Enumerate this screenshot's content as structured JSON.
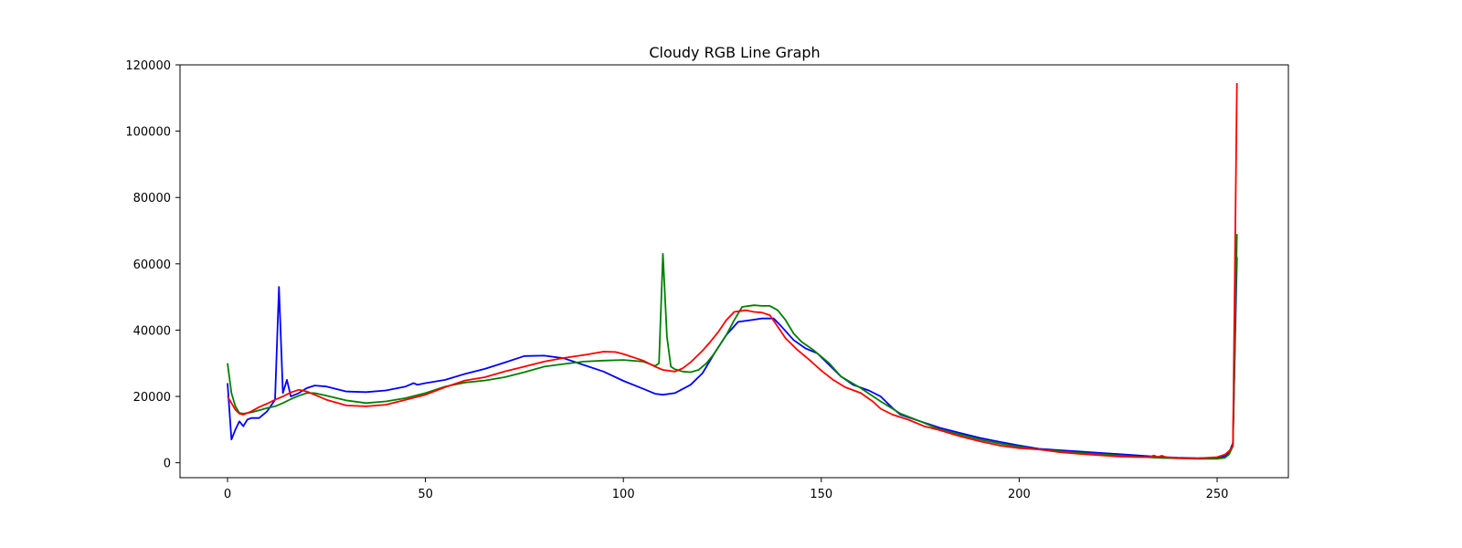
{
  "chart_data": {
    "type": "line",
    "title": "Cloudy RGB Line Graph",
    "xlabel": "",
    "ylabel": "",
    "xlim": [
      -12,
      268
    ],
    "ylim": [
      -4500,
      120000
    ],
    "xticks": [
      0,
      50,
      100,
      150,
      200,
      250
    ],
    "yticks": [
      0,
      20000,
      40000,
      60000,
      80000,
      100000,
      120000
    ],
    "grid": false,
    "legend": "none",
    "series": [
      {
        "color": "#0000ff",
        "points": [
          [
            0,
            24000
          ],
          [
            1,
            7000
          ],
          [
            2,
            10000
          ],
          [
            3,
            12500
          ],
          [
            4,
            11000
          ],
          [
            5,
            13000
          ],
          [
            6,
            13500
          ],
          [
            8,
            13500
          ],
          [
            10,
            15500
          ],
          [
            12,
            19000
          ],
          [
            13,
            53000
          ],
          [
            14,
            21000
          ],
          [
            15,
            25000
          ],
          [
            16,
            20000
          ],
          [
            18,
            21000
          ],
          [
            20,
            22500
          ],
          [
            22,
            23300
          ],
          [
            25,
            23000
          ],
          [
            30,
            21500
          ],
          [
            35,
            21300
          ],
          [
            40,
            21800
          ],
          [
            45,
            23000
          ],
          [
            47,
            24000
          ],
          [
            48,
            23500
          ],
          [
            50,
            24000
          ],
          [
            55,
            25000
          ],
          [
            60,
            26800
          ],
          [
            65,
            28300
          ],
          [
            70,
            30200
          ],
          [
            75,
            32200
          ],
          [
            80,
            32300
          ],
          [
            85,
            31500
          ],
          [
            90,
            29500
          ],
          [
            95,
            27500
          ],
          [
            100,
            24700
          ],
          [
            105,
            22300
          ],
          [
            108,
            20800
          ],
          [
            110,
            20500
          ],
          [
            113,
            21000
          ],
          [
            117,
            23500
          ],
          [
            120,
            27000
          ],
          [
            123,
            33000
          ],
          [
            126,
            38500
          ],
          [
            129,
            42500
          ],
          [
            132,
            43000
          ],
          [
            135,
            43500
          ],
          [
            138,
            43500
          ],
          [
            140,
            41000
          ],
          [
            143,
            37000
          ],
          [
            146,
            34500
          ],
          [
            149,
            33000
          ],
          [
            152,
            29500
          ],
          [
            155,
            26000
          ],
          [
            158,
            23500
          ],
          [
            162,
            21800
          ],
          [
            165,
            20000
          ],
          [
            168,
            16500
          ],
          [
            170,
            14500
          ],
          [
            175,
            12500
          ],
          [
            180,
            10500
          ],
          [
            185,
            9000
          ],
          [
            190,
            7500
          ],
          [
            195,
            6300
          ],
          [
            200,
            5200
          ],
          [
            205,
            4200
          ],
          [
            210,
            3800
          ],
          [
            215,
            3400
          ],
          [
            220,
            3000
          ],
          [
            225,
            2600
          ],
          [
            230,
            2200
          ],
          [
            235,
            1800
          ],
          [
            240,
            1500
          ],
          [
            245,
            1400
          ],
          [
            250,
            1500
          ],
          [
            252,
            2000
          ],
          [
            253,
            3000
          ],
          [
            254,
            6000
          ],
          [
            255,
            62000
          ]
        ]
      },
      {
        "color": "#008000",
        "points": [
          [
            0,
            30000
          ],
          [
            1,
            21000
          ],
          [
            2,
            17000
          ],
          [
            3,
            15000
          ],
          [
            4,
            14800
          ],
          [
            6,
            15200
          ],
          [
            8,
            15800
          ],
          [
            10,
            16500
          ],
          [
            12,
            17000
          ],
          [
            14,
            18000
          ],
          [
            16,
            19200
          ],
          [
            18,
            20200
          ],
          [
            20,
            21000
          ],
          [
            22,
            21000
          ],
          [
            25,
            20200
          ],
          [
            30,
            18800
          ],
          [
            35,
            18000
          ],
          [
            40,
            18500
          ],
          [
            45,
            19500
          ],
          [
            50,
            21000
          ],
          [
            55,
            23000
          ],
          [
            60,
            24200
          ],
          [
            65,
            24800
          ],
          [
            70,
            25800
          ],
          [
            75,
            27300
          ],
          [
            80,
            29000
          ],
          [
            85,
            29800
          ],
          [
            90,
            30500
          ],
          [
            95,
            30800
          ],
          [
            100,
            31000
          ],
          [
            105,
            30500
          ],
          [
            108,
            29200
          ],
          [
            109,
            30000
          ],
          [
            110,
            63000
          ],
          [
            111,
            38000
          ],
          [
            112,
            29000
          ],
          [
            113,
            28200
          ],
          [
            115,
            27500
          ],
          [
            117,
            27300
          ],
          [
            119,
            28000
          ],
          [
            121,
            30000
          ],
          [
            123,
            33000
          ],
          [
            126,
            38500
          ],
          [
            128,
            43000
          ],
          [
            130,
            47000
          ],
          [
            133,
            47500
          ],
          [
            135,
            47300
          ],
          [
            137,
            47300
          ],
          [
            139,
            46000
          ],
          [
            141,
            43000
          ],
          [
            143,
            39000
          ],
          [
            145,
            36500
          ],
          [
            148,
            34000
          ],
          [
            152,
            30000
          ],
          [
            155,
            26000
          ],
          [
            160,
            22500
          ],
          [
            165,
            18500
          ],
          [
            170,
            14800
          ],
          [
            175,
            12500
          ],
          [
            180,
            10000
          ],
          [
            185,
            8500
          ],
          [
            190,
            7000
          ],
          [
            195,
            5800
          ],
          [
            200,
            4800
          ],
          [
            205,
            4000
          ],
          [
            210,
            3500
          ],
          [
            215,
            3000
          ],
          [
            220,
            2600
          ],
          [
            225,
            2200
          ],
          [
            230,
            1800
          ],
          [
            235,
            1500
          ],
          [
            240,
            1300
          ],
          [
            245,
            1200
          ],
          [
            250,
            1200
          ],
          [
            252,
            1500
          ],
          [
            253,
            2500
          ],
          [
            254,
            5000
          ],
          [
            255,
            69000
          ]
        ]
      },
      {
        "color": "#ff0000",
        "points": [
          [
            0,
            20000
          ],
          [
            1,
            18000
          ],
          [
            2,
            16000
          ],
          [
            3,
            14800
          ],
          [
            4,
            14500
          ],
          [
            6,
            15500
          ],
          [
            8,
            16800
          ],
          [
            10,
            17800
          ],
          [
            12,
            19000
          ],
          [
            14,
            20000
          ],
          [
            16,
            21200
          ],
          [
            18,
            22000
          ],
          [
            20,
            21500
          ],
          [
            22,
            20500
          ],
          [
            25,
            19000
          ],
          [
            30,
            17300
          ],
          [
            35,
            17000
          ],
          [
            40,
            17500
          ],
          [
            45,
            19000
          ],
          [
            50,
            20500
          ],
          [
            55,
            22800
          ],
          [
            60,
            24800
          ],
          [
            65,
            25800
          ],
          [
            70,
            27500
          ],
          [
            75,
            29000
          ],
          [
            80,
            30500
          ],
          [
            85,
            31600
          ],
          [
            90,
            32500
          ],
          [
            95,
            33500
          ],
          [
            98,
            33400
          ],
          [
            100,
            32800
          ],
          [
            105,
            30800
          ],
          [
            108,
            29000
          ],
          [
            110,
            28000
          ],
          [
            113,
            27500
          ],
          [
            115,
            28500
          ],
          [
            117,
            30300
          ],
          [
            120,
            33800
          ],
          [
            122,
            36500
          ],
          [
            124,
            39500
          ],
          [
            126,
            43000
          ],
          [
            128,
            45500
          ],
          [
            131,
            46000
          ],
          [
            133,
            45500
          ],
          [
            135,
            45300
          ],
          [
            137,
            44500
          ],
          [
            139,
            41000
          ],
          [
            141,
            37500
          ],
          [
            144,
            34000
          ],
          [
            147,
            31000
          ],
          [
            150,
            27800
          ],
          [
            153,
            25000
          ],
          [
            156,
            22800
          ],
          [
            160,
            21000
          ],
          [
            163,
            18500
          ],
          [
            165,
            16300
          ],
          [
            168,
            14500
          ],
          [
            172,
            13000
          ],
          [
            176,
            11000
          ],
          [
            180,
            9800
          ],
          [
            185,
            8000
          ],
          [
            190,
            6500
          ],
          [
            195,
            5200
          ],
          [
            200,
            4400
          ],
          [
            205,
            4000
          ],
          [
            210,
            3200
          ],
          [
            215,
            2700
          ],
          [
            220,
            2300
          ],
          [
            225,
            1900
          ],
          [
            230,
            1700
          ],
          [
            233,
            1700
          ],
          [
            234,
            2200
          ],
          [
            235,
            1700
          ],
          [
            236,
            2100
          ],
          [
            237,
            1700
          ],
          [
            240,
            1400
          ],
          [
            245,
            1300
          ],
          [
            250,
            1700
          ],
          [
            252,
            2500
          ],
          [
            253,
            3500
          ],
          [
            254,
            5000
          ],
          [
            255,
            114500
          ]
        ]
      }
    ]
  }
}
